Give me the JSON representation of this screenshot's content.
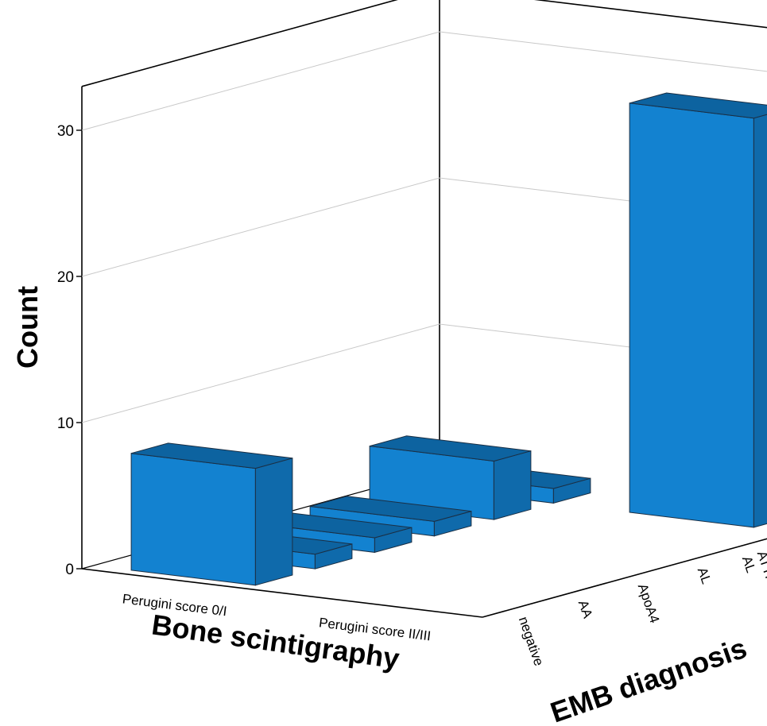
{
  "chart_data": {
    "type": "bar",
    "subtype": "3d-bar",
    "title": "",
    "zlabel": "Count",
    "xlabel": "Bone scintigraphy",
    "ylabel": "EMB diagnosis",
    "x_categories": [
      "Perugini score 0/I",
      "Perugini score II/III"
    ],
    "y_categories": [
      "negative",
      "AA",
      "ApoA4",
      "AL",
      "ATTR + AL",
      "ATTR"
    ],
    "zlim": [
      0,
      30
    ],
    "z_ticks": [
      "0",
      "10",
      "20",
      "30"
    ],
    "grid": true,
    "color": "#1382d0",
    "bars": [
      {
        "x": "Perugini score 0/I",
        "y": "negative",
        "value": 8
      },
      {
        "x": "Perugini score 0/I",
        "y": "AA",
        "value": 1
      },
      {
        "x": "Perugini score 0/I",
        "y": "ApoA4",
        "value": 1
      },
      {
        "x": "Perugini score 0/I",
        "y": "AL",
        "value": 1
      },
      {
        "x": "Perugini score 0/I",
        "y": "ATTR + AL",
        "value": 4
      },
      {
        "x": "Perugini score 0/I",
        "y": "ATTR",
        "value": 1
      },
      {
        "x": "Perugini score II/III",
        "y": "ATTR",
        "value": 28
      }
    ]
  }
}
